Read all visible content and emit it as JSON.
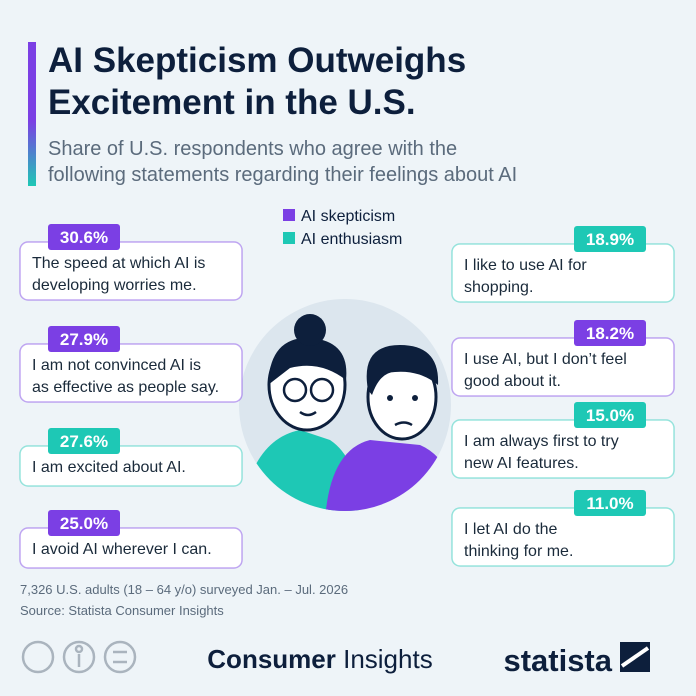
{
  "header": {
    "title": [
      "AI Skepticism Outweighs",
      "Excitement in the U.S."
    ],
    "subtitle": [
      "Share of U.S. respondents who agree with the",
      "following statements regarding their feelings about AI"
    ]
  },
  "legend": [
    {
      "label": "AI skepticism",
      "color": "#7b3fe4"
    },
    {
      "label": "AI enthusiasm",
      "color": "#1ec8b5"
    }
  ],
  "items": [
    {
      "value": "30.6%",
      "text": [
        "The speed at which AI is",
        "developing worries me."
      ],
      "group": 0,
      "side": "left"
    },
    {
      "value": "27.9%",
      "text": [
        "I am not convinced AI is",
        "as effective as people say."
      ],
      "group": 0,
      "side": "left"
    },
    {
      "value": "27.6%",
      "text": [
        "I am excited about AI."
      ],
      "group": 1,
      "side": "left"
    },
    {
      "value": "25.0%",
      "text": [
        "I avoid AI wherever I can."
      ],
      "group": 0,
      "side": "left"
    },
    {
      "value": "18.9%",
      "text": [
        "I like to use AI for",
        "shopping."
      ],
      "group": 1,
      "side": "right"
    },
    {
      "value": "18.2%",
      "text": [
        "I use AI, but I don’t feel",
        "good about it."
      ],
      "group": 0,
      "side": "right"
    },
    {
      "value": "15.0%",
      "text": [
        "I am always first to try",
        "new AI features."
      ],
      "group": 1,
      "side": "right"
    },
    {
      "value": "11.0%",
      "text": [
        "I let AI do the",
        "thinking for me."
      ],
      "group": 1,
      "side": "right"
    }
  ],
  "footer": {
    "note": "7,326 U.S. adults (18 – 64 y/o) surveyed Jan. – Jul. 2026",
    "source": "Source: Statista Consumer Insights",
    "brand": [
      "Consumer",
      "Insights"
    ],
    "logo": "statista"
  }
}
